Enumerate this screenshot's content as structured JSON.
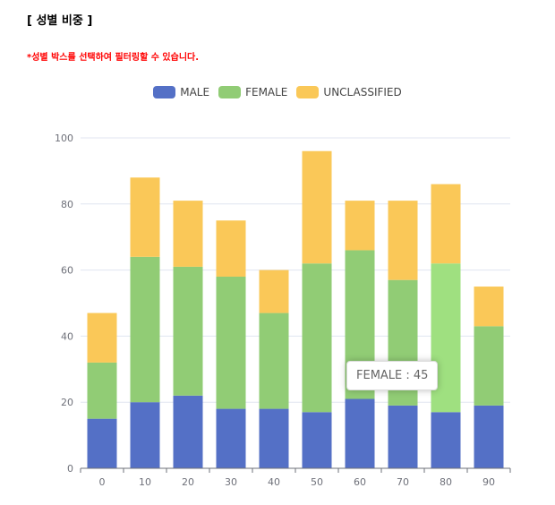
{
  "page": {
    "title": "[ 성별 비중 ]",
    "note": "*성별 박스를 선택하여 필터링할 수 있습니다."
  },
  "legend": [
    {
      "label": "MALE",
      "color": "#5470c6"
    },
    {
      "label": "FEMALE",
      "color": "#91cc75"
    },
    {
      "label": "UNCLASSIFIED",
      "color": "#fac858"
    }
  ],
  "tooltip": {
    "text": "FEMALE : 45"
  },
  "chart_data": {
    "type": "bar",
    "stacked": true,
    "categories": [
      "0",
      "10",
      "20",
      "30",
      "40",
      "50",
      "60",
      "70",
      "80",
      "90"
    ],
    "series": [
      {
        "name": "MALE",
        "color": "#5470c6",
        "values": [
          15,
          20,
          22,
          18,
          18,
          17,
          21,
          19,
          17,
          19
        ]
      },
      {
        "name": "FEMALE",
        "color": "#91cc75",
        "values": [
          17,
          44,
          39,
          40,
          29,
          45,
          45,
          38,
          45,
          24
        ]
      },
      {
        "name": "UNCLASSIFIED",
        "color": "#fac858",
        "values": [
          15,
          24,
          20,
          17,
          13,
          34,
          15,
          24,
          24,
          12
        ]
      }
    ],
    "ylim": [
      0,
      100
    ],
    "yticks": [
      "0",
      "20",
      "40",
      "60",
      "80",
      "100"
    ],
    "highlight": {
      "series": "FEMALE",
      "category": "80",
      "color": "#9fe080"
    },
    "legend_position": "top",
    "grid": true
  }
}
